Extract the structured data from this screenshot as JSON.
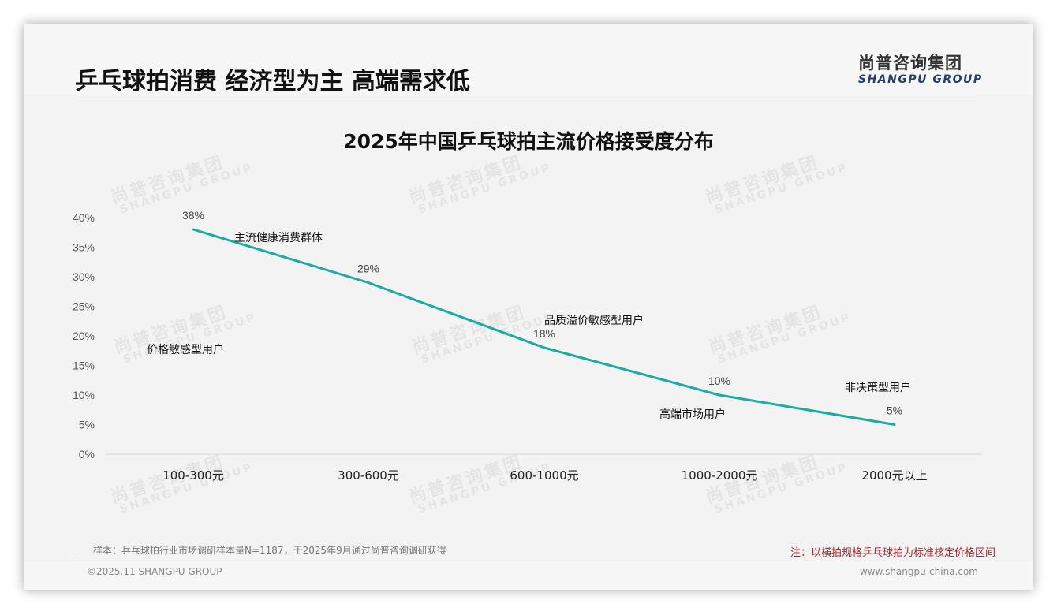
{
  "header": {
    "title": "乒乓球拍消费 经济型为主 高端需求低",
    "logo_cn": "尚普咨询集团",
    "logo_en": "SHANGPU GROUP"
  },
  "watermark": {
    "cn": "尚普咨询集团",
    "en": "SHANGPU GROUP"
  },
  "chart_data": {
    "type": "line",
    "title": "2025年中国乒乓球拍主流价格接受度分布",
    "xlabel": "",
    "ylabel": "",
    "categories": [
      "100-300元",
      "300-600元",
      "600-1000元",
      "1000-2000元",
      "2000元以上"
    ],
    "values": [
      38,
      29,
      18,
      10,
      5
    ],
    "value_labels": [
      "38%",
      "29%",
      "18%",
      "10%",
      "5%"
    ],
    "ylim": [
      0,
      40
    ],
    "yticks": [
      "0%",
      "5%",
      "10%",
      "15%",
      "20%",
      "25%",
      "30%",
      "35%",
      "40%"
    ],
    "grid": false,
    "line_color": "#1aaba3",
    "annotations": [
      {
        "text": "价格敏感型用户",
        "near": "100-300元"
      },
      {
        "text": "主流健康消费群体",
        "near": "300-600元"
      },
      {
        "text": "品质溢价敏感型用户",
        "near": "600-1000元"
      },
      {
        "text": "高端市场用户",
        "near": "1000-2000元"
      },
      {
        "text": "非决策型用户",
        "near": "2000元以上"
      }
    ]
  },
  "footer": {
    "source": "样本：乒乓球拍行业市场调研样本量N=1187，于2025年9月通过尚普咨询调研获得",
    "note": "注：以横拍规格乒乓球拍为标准核定价格区间",
    "copyright": "©2025.11 SHANGPU GROUP",
    "website": "www.shangpu-china.com"
  }
}
